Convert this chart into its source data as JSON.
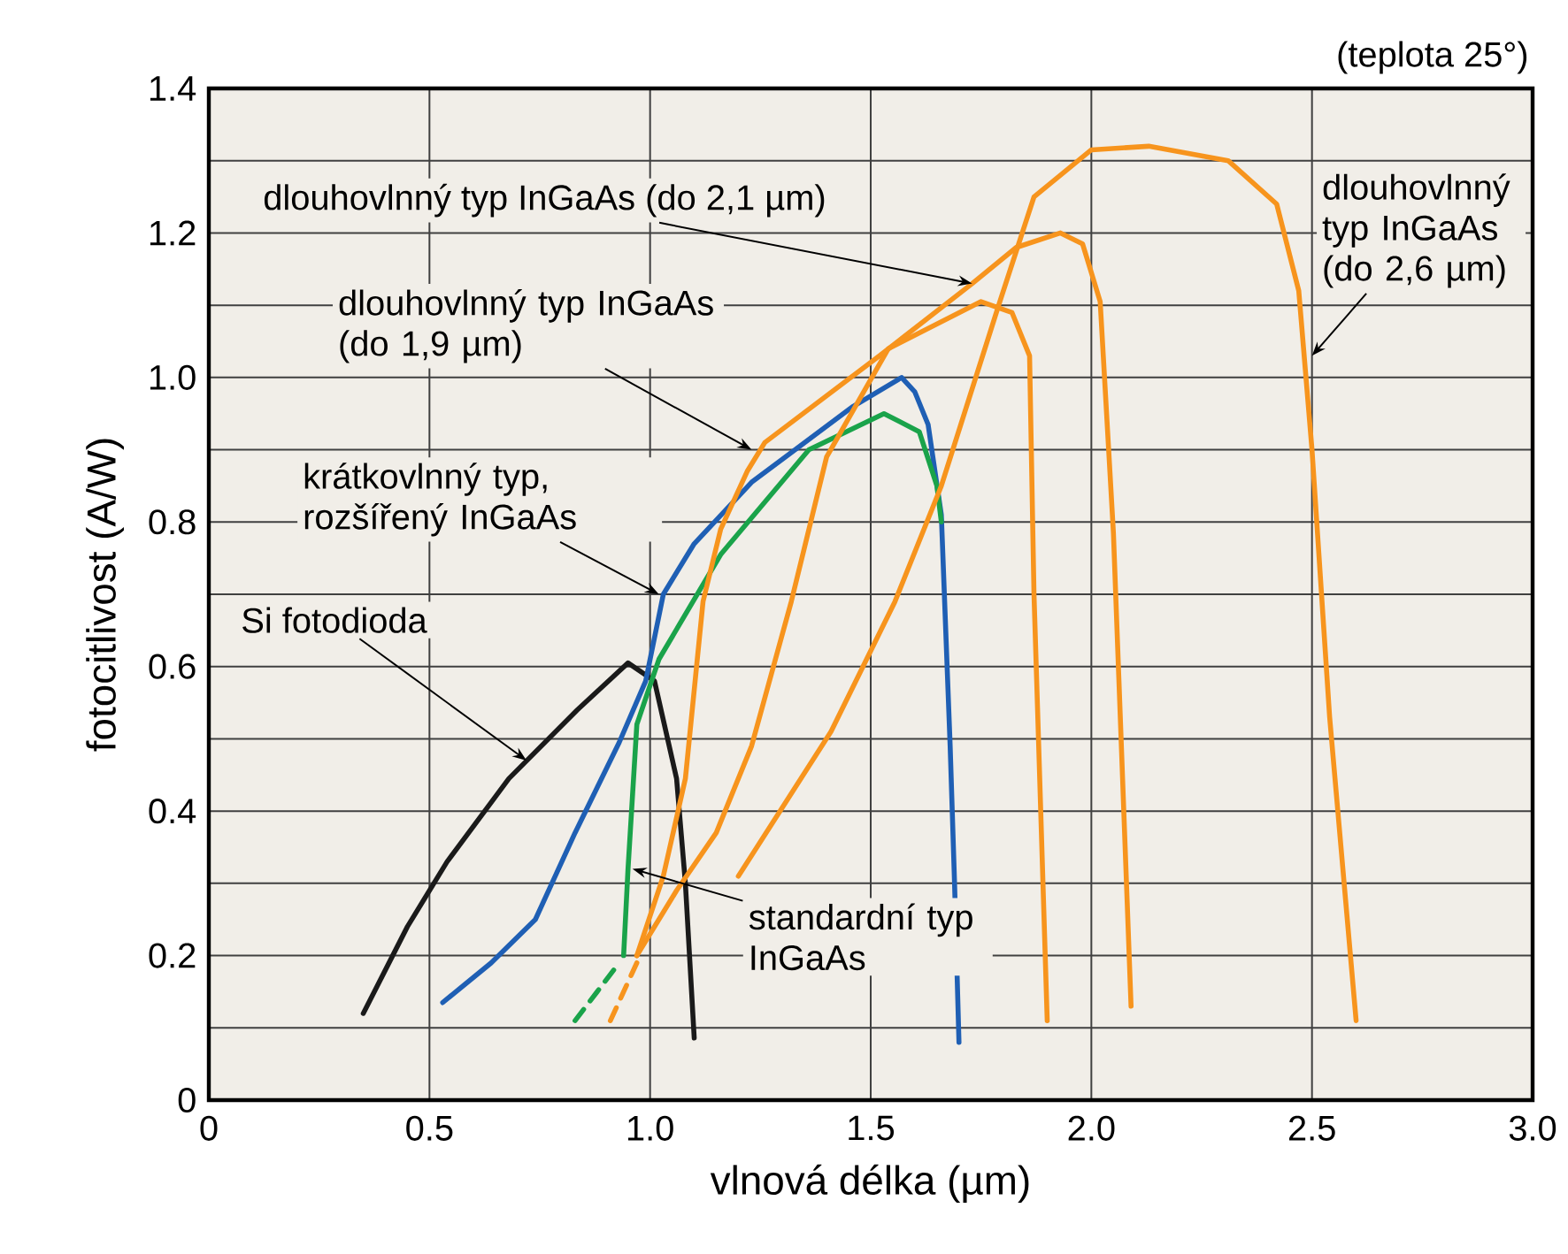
{
  "chart_data": {
    "type": "line",
    "xlabel": "vlnová délka (µm)",
    "ylabel": "fotocitlivost (A/W)",
    "xlim": [
      0,
      3
    ],
    "ylim": [
      0,
      1.4
    ],
    "xticks": [
      0,
      0.5,
      {
        "value": 1,
        "label": "1.0"
      },
      1.5,
      {
        "value": 2,
        "label": "2.0"
      },
      2.5,
      {
        "value": 3,
        "label": "3.0"
      }
    ],
    "yticks": [
      0,
      {
        "value": 0.1,
        "label": null
      },
      0.2,
      {
        "value": 0.3,
        "label": null
      },
      0.4,
      {
        "value": 0.5,
        "label": null
      },
      0.6,
      {
        "value": 0.7,
        "label": null
      },
      0.8,
      {
        "value": 0.9,
        "label": null
      },
      {
        "value": 1,
        "label": "1.0"
      },
      {
        "value": 1.1,
        "label": null
      },
      1.2,
      {
        "value": 1.3,
        "label": null
      },
      1.4
    ],
    "grid": true,
    "annotations": [
      "(teplota 25°)",
      {
        "text": "dlouhovlnný typ InGaAs (do 2,1 µm)",
        "x": 1.73,
        "y": 1.13
      },
      {
        "text": "dlouhovlnný typ InGaAs (do 1,9 µm)",
        "x": 1.23,
        "y": 0.9
      },
      {
        "text": "krátkovlnný typ, rozšířený InGaAs",
        "x": 1.02,
        "y": 0.7
      },
      {
        "text": "Si fotodioda",
        "x": 0.72,
        "y": 0.47
      },
      {
        "text": "standardní typ InGaAs",
        "x": 0.96,
        "y": 0.32
      },
      {
        "text": "dlouhovlnný typ InGaAs (do 2,6 µm)",
        "x": 2.5,
        "y": 1.03
      }
    ],
    "series": [
      {
        "color": "#1a1a1a",
        "x": [
          0.35,
          0.45,
          0.54,
          0.68,
          0.835,
          0.95,
          1.01,
          1.06,
          1.08,
          1.1
        ],
        "values": [
          0.12,
          0.24,
          0.33,
          0.445,
          0.54,
          0.605,
          0.58,
          0.445,
          0.3,
          0.086
        ]
      },
      {
        "color": "#1f5fb4",
        "x": [
          0.53,
          0.64,
          0.74,
          0.83,
          0.93,
          0.99,
          1.03,
          1.1,
          1.23,
          1.46,
          1.57,
          1.6,
          1.63,
          1.66,
          1.68,
          1.69,
          1.7
        ],
        "values": [
          0.135,
          0.19,
          0.25,
          0.37,
          0.495,
          0.58,
          0.7,
          0.77,
          0.855,
          0.96,
          1.0,
          0.98,
          0.935,
          0.81,
          0.49,
          0.3,
          0.08
        ]
      },
      {
        "color": "#1aa34a",
        "line_style": "dashed",
        "x": [
          0.83,
          0.88,
          0.93
        ],
        "values": [
          0.11,
          0.15,
          0.19
        ]
      },
      {
        "color": "#1aa34a",
        "x": [
          0.94,
          0.95,
          0.97,
          1.02,
          1.16,
          1.36,
          1.53,
          1.61,
          1.65,
          1.66
        ],
        "values": [
          0.2,
          0.32,
          0.52,
          0.61,
          0.755,
          0.9,
          0.95,
          0.925,
          0.85,
          0.8
        ]
      },
      {
        "color": "#f7941d",
        "line_style": "dashed",
        "x": [
          0.91,
          0.94,
          0.97
        ],
        "values": [
          0.11,
          0.15,
          0.19
        ]
      },
      {
        "color": "#f7941d",
        "x": [
          0.97,
          1.03,
          1.08,
          1.12,
          1.16,
          1.22,
          1.26,
          1.52,
          1.73,
          1.83,
          1.93,
          1.98,
          2.02,
          2.05,
          2.09
        ],
        "values": [
          0.2,
          0.31,
          0.445,
          0.69,
          0.79,
          0.87,
          0.91,
          1.03,
          1.13,
          1.18,
          1.2,
          1.185,
          1.105,
          0.785,
          0.13
        ]
      },
      {
        "color": "#f7941d",
        "x": [
          0.97,
          1.06,
          1.15,
          1.23,
          1.32,
          1.4,
          1.54,
          1.75,
          1.82,
          1.86,
          1.87,
          1.9
        ],
        "values": [
          0.2,
          0.29,
          0.37,
          0.49,
          0.69,
          0.89,
          1.04,
          1.105,
          1.09,
          1.03,
          0.7,
          0.11
        ]
      },
      {
        "color": "#f7941d",
        "x": [
          1.2,
          1.41,
          1.555,
          1.66,
          1.79,
          1.87,
          2.0,
          2.13,
          2.31,
          2.42,
          2.47,
          2.5,
          2.54,
          2.6
        ],
        "values": [
          0.31,
          0.51,
          0.69,
          0.85,
          1.1,
          1.25,
          1.315,
          1.32,
          1.3,
          1.24,
          1.12,
          0.9,
          0.53,
          0.11
        ]
      }
    ]
  }
}
